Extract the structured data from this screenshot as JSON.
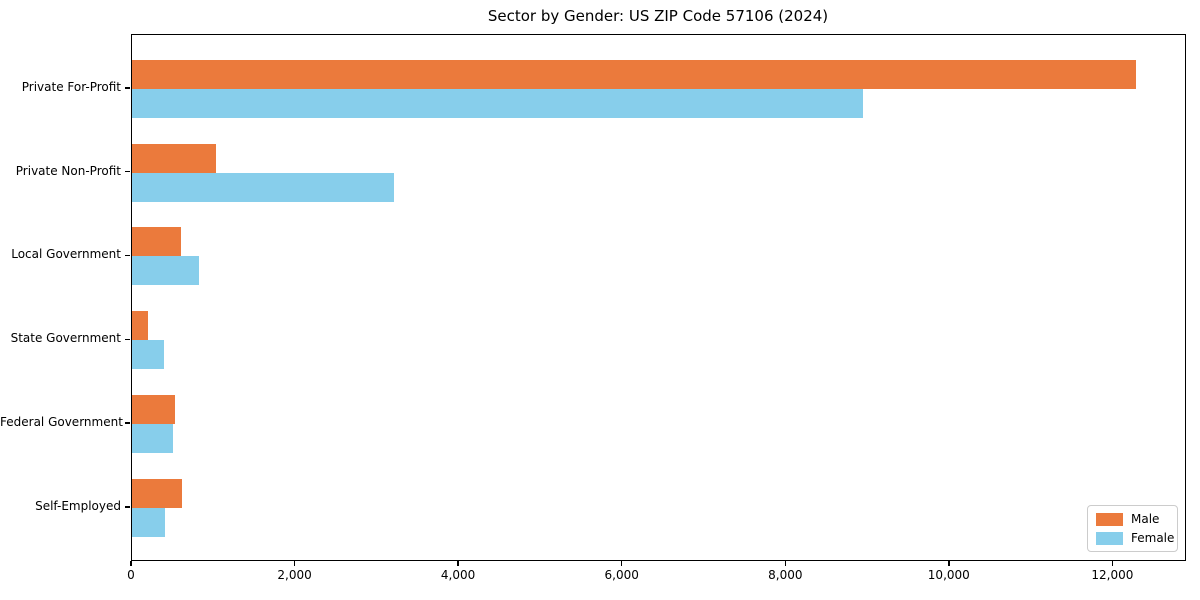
{
  "title": "Sector by Gender: US ZIP Code 57106 (2024)",
  "legend": {
    "position": "lower right",
    "items": [
      {
        "label": "Male",
        "color": "#EB7A3C"
      },
      {
        "label": "Female",
        "color": "#87CEEB"
      }
    ]
  },
  "chart_data": {
    "type": "bar",
    "orientation": "horizontal",
    "title": "Sector by Gender: US ZIP Code 57106 (2024)",
    "categories": [
      "Private For-Profit",
      "Private Non-Profit",
      "Local Government",
      "State Government",
      "Federal Government",
      "Self-Employed"
    ],
    "series": [
      {
        "name": "Male",
        "color": "#EB7A3C",
        "values": [
          12270,
          1030,
          600,
          190,
          520,
          610
        ]
      },
      {
        "name": "Female",
        "color": "#87CEEB",
        "values": [
          8940,
          3200,
          820,
          390,
          500,
          400
        ]
      }
    ],
    "xlabel": "",
    "ylabel": "",
    "xlim": [
      0,
      12900
    ],
    "xticks": [
      0,
      2000,
      4000,
      6000,
      8000,
      10000,
      12000
    ],
    "xtick_labels": [
      "0",
      "2,000",
      "4,000",
      "6,000",
      "8,000",
      "10,000",
      "12,000"
    ],
    "grid": false,
    "legend_position": "lower right"
  }
}
